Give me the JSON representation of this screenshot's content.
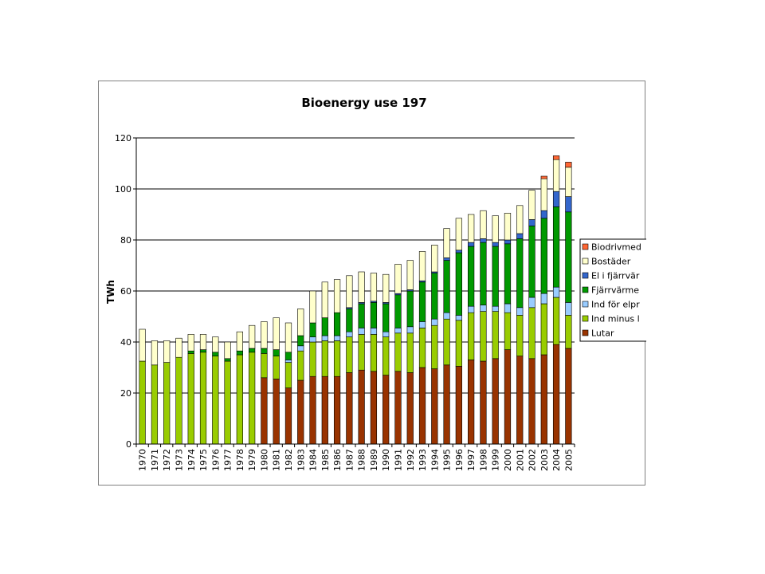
{
  "chart_data": {
    "type": "bar",
    "stacked": true,
    "title": "Bioenergy use 197",
    "xlabel": "",
    "ylabel": "TWh",
    "ylim": [
      0,
      120
    ],
    "yticks": [
      0,
      20,
      40,
      60,
      80,
      100,
      120
    ],
    "grid": true,
    "legend_position": "right",
    "categories": [
      "1970",
      "1971",
      "1972",
      "1973",
      "1974",
      "1975",
      "1976",
      "1977",
      "1978",
      "1979",
      "1980",
      "1981",
      "1982",
      "1983",
      "1984",
      "1985",
      "1986",
      "1987",
      "1988",
      "1989",
      "1990",
      "1991",
      "1992",
      "1993",
      "1994",
      "1995",
      "1996",
      "1997",
      "1998",
      "1999",
      "2000",
      "2001",
      "2002",
      "2003",
      "2004",
      "2005"
    ],
    "series": [
      {
        "name": "Lutar",
        "color": "#993300",
        "values": [
          0,
          0,
          0,
          0,
          0,
          0,
          0,
          0,
          0,
          0,
          26,
          25.5,
          22,
          25,
          26.5,
          26.5,
          26.5,
          28,
          29,
          28.5,
          27,
          28.5,
          28,
          30,
          29.5,
          31,
          30.5,
          33,
          32.5,
          33.5,
          37,
          34.5,
          33.5,
          35,
          39,
          37.5
        ]
      },
      {
        "name": "Ind minus l",
        "color": "#99cc00",
        "values": [
          32.5,
          31,
          32,
          34,
          35.5,
          36,
          34.5,
          32.5,
          35,
          36,
          9.5,
          9,
          10,
          11.5,
          13.5,
          14,
          14,
          14,
          14,
          14.5,
          15,
          15,
          15.5,
          15.5,
          17,
          18,
          18,
          18.5,
          19.5,
          18.5,
          14.5,
          16,
          20,
          20,
          18.5,
          13
        ]
      },
      {
        "name": "Ind för elpr",
        "color": "#99ccff",
        "values": [
          0,
          0,
          0,
          0,
          0,
          0,
          0,
          0,
          0,
          0,
          0,
          0,
          1,
          2,
          2,
          2,
          2,
          2,
          2.5,
          2.5,
          2,
          2,
          2.5,
          2.5,
          2.5,
          2.5,
          2,
          2.5,
          2.5,
          2,
          3.5,
          3,
          4,
          4,
          4,
          5
        ]
      },
      {
        "name": "Fjärrvärme",
        "color": "#009900",
        "values": [
          0,
          0,
          0,
          0,
          1,
          1,
          1.5,
          1,
          1.5,
          1.5,
          2,
          2.5,
          3,
          4,
          5.5,
          7,
          9,
          9,
          9.5,
          10,
          11,
          13,
          14,
          15.5,
          18,
          20.5,
          24.5,
          23.5,
          24.5,
          23.5,
          23.5,
          27,
          28,
          29.5,
          31.5,
          35.5
        ]
      },
      {
        "name": "El i fjärrvär",
        "color": "#3366cc",
        "values": [
          0,
          0,
          0,
          0,
          0,
          0,
          0,
          0,
          0,
          0,
          0,
          0,
          0,
          0,
          0,
          0,
          0,
          0.5,
          0.5,
          0.5,
          0.5,
          0.5,
          0.5,
          0.5,
          0.5,
          1,
          1,
          1.5,
          1.5,
          1.5,
          1.5,
          2,
          2.5,
          3,
          6,
          6
        ]
      },
      {
        "name": "Bostäder",
        "color": "#ffffcc",
        "values": [
          12.5,
          9.5,
          8.5,
          7.5,
          6.5,
          6,
          6,
          6.5,
          7.5,
          9,
          10.5,
          12.5,
          11.5,
          10.5,
          12.5,
          14,
          13,
          12.5,
          12,
          11,
          11,
          11.5,
          11.5,
          11.5,
          10.5,
          11.5,
          12.5,
          11,
          11,
          10.5,
          10.5,
          11,
          11.5,
          12.5,
          12.5,
          11.5
        ]
      },
      {
        "name": "Biodrivmed",
        "color": "#ff6633",
        "values": [
          0,
          0,
          0,
          0,
          0,
          0,
          0,
          0,
          0,
          0,
          0,
          0,
          0,
          0,
          0,
          0,
          0,
          0,
          0,
          0,
          0,
          0,
          0,
          0,
          0,
          0,
          0,
          0,
          0,
          0,
          0,
          0,
          0,
          1,
          1.5,
          2
        ]
      }
    ]
  }
}
